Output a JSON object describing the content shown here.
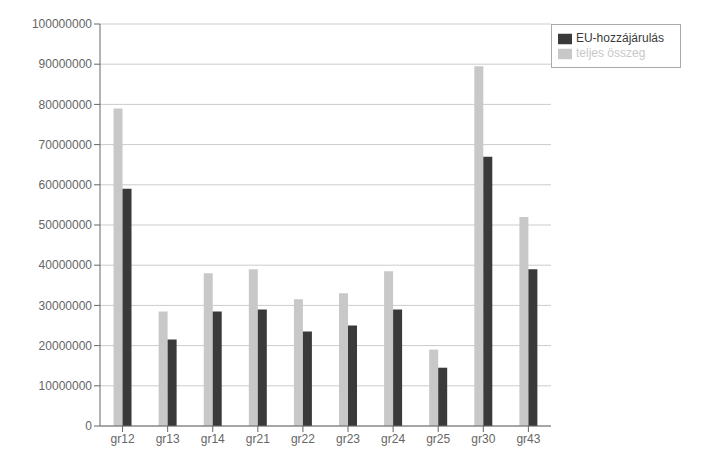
{
  "chart_data": {
    "type": "bar",
    "categories": [
      "gr12",
      "gr13",
      "gr14",
      "gr21",
      "gr22",
      "gr23",
      "gr24",
      "gr25",
      "gr30",
      "gr43"
    ],
    "series": [
      {
        "name": "teljes összeg",
        "color": "#c8c8c8",
        "values": [
          79000000,
          28500000,
          38000000,
          39000000,
          31500000,
          33000000,
          38500000,
          19000000,
          89500000,
          52000000
        ]
      },
      {
        "name": "EU-hozzájárulás",
        "color": "#3a3a3a",
        "values": [
          59000000,
          21500000,
          28500000,
          29000000,
          23500000,
          25000000,
          29000000,
          14500000,
          67000000,
          39000000
        ]
      }
    ],
    "ylim": [
      0,
      100000000
    ],
    "yticks": [
      0,
      10000000,
      20000000,
      30000000,
      40000000,
      50000000,
      60000000,
      70000000,
      80000000,
      90000000,
      100000000
    ],
    "grid": true,
    "legend": "upper right"
  }
}
